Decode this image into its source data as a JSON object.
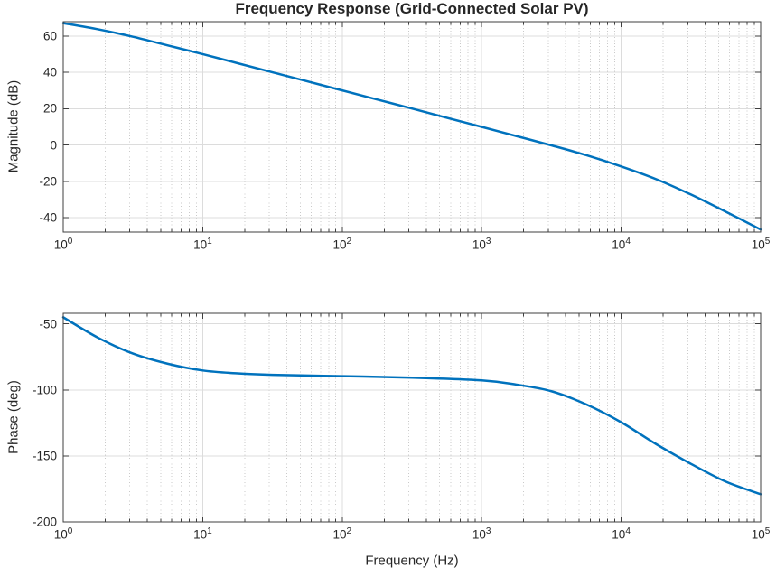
{
  "figure": {
    "background_color": "#ffffff",
    "axis_color": "#3f3f3f",
    "text_color": "#262626",
    "line_color": "#0072BD",
    "major_grid_color": "#dcdcdc",
    "minor_grid_color": "#c9c9c9",
    "xtick_base": "10"
  },
  "chart_data": [
    {
      "type": "line",
      "id": "magnitude-subplot",
      "title": "Frequency Response (Grid-Connected Solar PV)",
      "xlabel": "",
      "ylabel": "Magnitude (dB)",
      "xscale": "log",
      "xlim_hz": [
        1,
        100000
      ],
      "ylim": [
        -48,
        68
      ],
      "xtick_exponents": [
        0,
        1,
        2,
        3,
        4,
        5
      ],
      "yticks": [
        -40,
        -20,
        0,
        20,
        40,
        60
      ],
      "grid": {
        "major": true,
        "x_minor_dotted": true
      },
      "legend": "none",
      "series": [
        {
          "name": "Magnitude",
          "log10_freq_hz": [
            0,
            0.25,
            0.5,
            0.75,
            1,
            1.25,
            1.5,
            1.75,
            2,
            2.25,
            2.5,
            2.75,
            3,
            3.25,
            3.5,
            3.75,
            4,
            4.25,
            4.5,
            4.75,
            5
          ],
          "magnitude_db": [
            67.2,
            63.8,
            59.7,
            54.9,
            50.1,
            45.1,
            40.1,
            35.1,
            30.1,
            25.1,
            20.1,
            15.0,
            10.0,
            4.9,
            -0.2,
            -5.6,
            -11.8,
            -18.8,
            -27.3,
            -36.8,
            -46.6
          ]
        }
      ]
    },
    {
      "type": "line",
      "id": "phase-subplot",
      "title": "",
      "xlabel": "Frequency (Hz)",
      "ylabel": "Phase (deg)",
      "xscale": "log",
      "xlim_hz": [
        1,
        100000
      ],
      "ylim": [
        -200,
        -42
      ],
      "xtick_exponents": [
        0,
        1,
        2,
        3,
        4,
        5
      ],
      "yticks": [
        -200,
        -150,
        -100,
        -50
      ],
      "grid": {
        "major": true,
        "x_minor_dotted": true
      },
      "legend": "none",
      "series": [
        {
          "name": "Phase",
          "log10_freq_hz": [
            0,
            0.25,
            0.5,
            0.75,
            1,
            1.25,
            1.5,
            2,
            2.5,
            3,
            3.25,
            3.5,
            3.75,
            4,
            4.25,
            4.5,
            4.75,
            5
          ],
          "phase_deg": [
            -45,
            -60.5,
            -72.5,
            -80.2,
            -85.3,
            -87.5,
            -88.6,
            -89.6,
            -90.7,
            -92.8,
            -96,
            -101,
            -111,
            -124.5,
            -141,
            -156,
            -169.5,
            -179
          ]
        }
      ]
    }
  ]
}
